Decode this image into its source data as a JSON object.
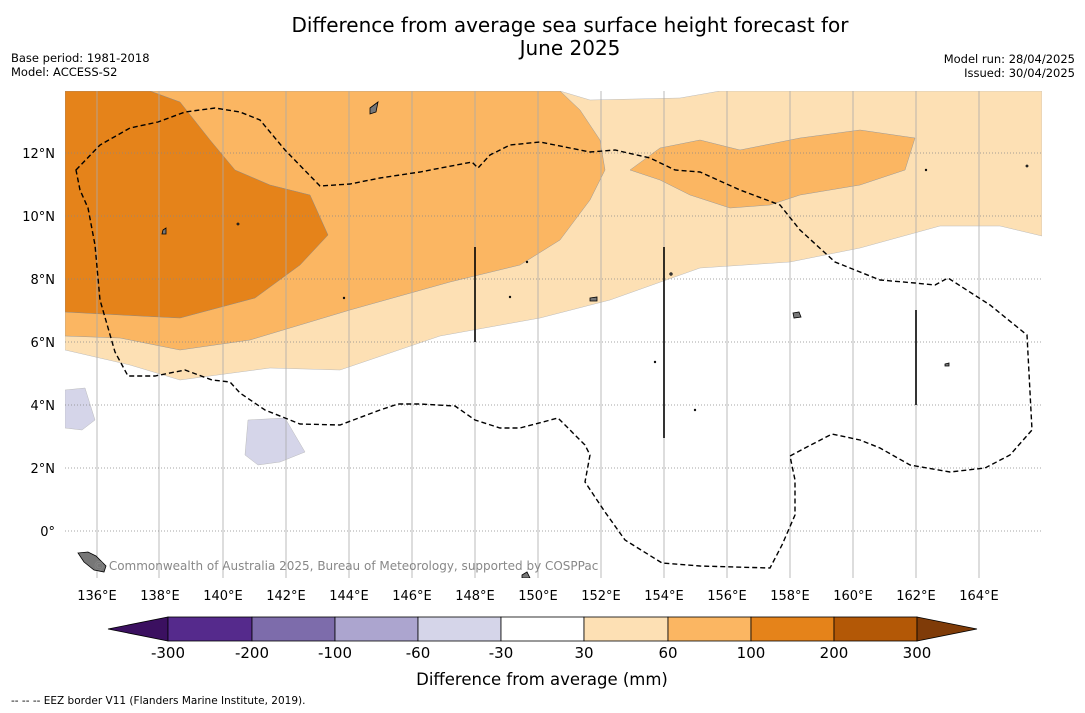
{
  "title_line1": "Difference from average sea surface height forecast for",
  "title_line2": "June 2025",
  "base_period": "Base period: 1981-2018",
  "model": "Model: ACCESS-S2",
  "model_run": "Model run: 28/04/2025",
  "issued": "Issued: 30/04/2025",
  "credit": "© Commonwealth of Australia 2025, Bureau of Meteorology, supported by COSPPac",
  "footer": "-- -- -- EEZ border V11 (Flanders Marine Institute, 2019).",
  "map": {
    "lon_ticks": [
      "136°E",
      "138°E",
      "140°E",
      "142°E",
      "144°E",
      "146°E",
      "148°E",
      "150°E",
      "152°E",
      "154°E",
      "156°E",
      "158°E",
      "160°E",
      "162°E",
      "164°E"
    ],
    "lat_ticks": [
      "12°N",
      "10°N",
      "8°N",
      "6°N",
      "4°N",
      "2°N",
      "0°"
    ],
    "lon_range": [
      135,
      166
    ],
    "lat_range": [
      -1.5,
      14
    ]
  },
  "colorbar": {
    "title": "Difference from average (mm)",
    "labels": [
      "-300",
      "-200",
      "-100",
      "-60",
      "-30",
      "30",
      "60",
      "100",
      "200",
      "300"
    ],
    "colors": [
      "#3b1060",
      "#552a8c",
      "#7d6cab",
      "#aca5cf",
      "#d5d5e9",
      "#ffffff",
      "#fde0b4",
      "#fbb662",
      "#e5831a",
      "#b35806",
      "#7f3b08"
    ]
  },
  "fills": {
    "light_orange": "#fde0b4",
    "mid_orange": "#fbb662",
    "dark_orange": "#e5831a",
    "light_purple": "#d5d5e9"
  }
}
